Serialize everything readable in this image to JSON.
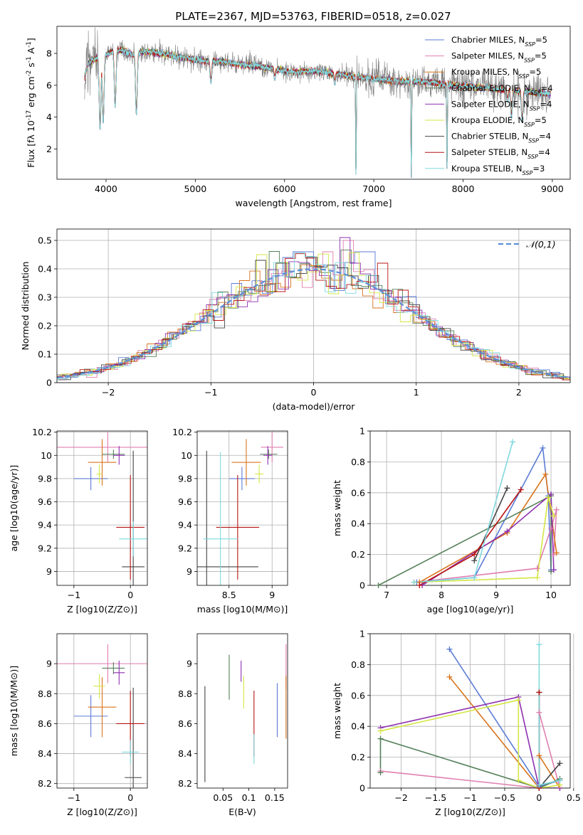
{
  "figure_title": "PLATE=2367, MJD=53763, FIBERID=0518, z=0.027",
  "models": [
    {
      "name": "Chabrier MILES, N_SSP=5",
      "imf": "Chabrier MILES",
      "nssp": "5",
      "color": "#5b7bd6"
    },
    {
      "name": "Salpeter MILES, N_SSP=5",
      "imf": "Salpeter MILES",
      "nssp": "5",
      "color": "#e07fb0"
    },
    {
      "name": "Kroupa MILES, N_SSP=5",
      "imf": "Kroupa MILES",
      "nssp": "5",
      "color": "#d9741c"
    },
    {
      "name": "Chabrier ELODIE, N_SSP=4",
      "imf": "Chabrier ELODIE",
      "nssp": "4",
      "color": "#55805a"
    },
    {
      "name": "Salpeter ELODIE, N_SSP=4",
      "imf": "Salpeter ELODIE",
      "nssp": "4",
      "color": "#8e2fb0"
    },
    {
      "name": "Kroupa ELODIE, N_SSP=5",
      "imf": "Kroupa ELODIE",
      "nssp": "5",
      "color": "#d4e645"
    },
    {
      "name": "Chabrier STELIB, N_SSP=4",
      "imf": "Chabrier STELIB",
      "nssp": "4",
      "color": "#444444"
    },
    {
      "name": "Salpeter STELIB, N_SSP=4",
      "imf": "Salpeter STELIB",
      "nssp": "4",
      "color": "#b81414"
    },
    {
      "name": "Kroupa STELIB, N_SSP=3",
      "imf": "Kroupa STELIB",
      "nssp": "3",
      "color": "#7fd9de"
    }
  ],
  "chart_data": [
    {
      "id": "spectrum",
      "type": "line",
      "xlabel": "wavelength [Angstrom, rest frame]",
      "ylabel": "Flux [f_λ 10^-17 erg cm^-2 s^-1 A^-1]",
      "xlim": [
        3450,
        9200
      ],
      "ylim": [
        0.1,
        9.7
      ],
      "xticks": [
        4000,
        5000,
        6000,
        7000,
        8000,
        9000
      ],
      "yticks": [
        2,
        4,
        6,
        8
      ],
      "legend": "top-right",
      "grid": false,
      "data_color": "#808080",
      "continuum": [
        [
          3760,
          6.6
        ],
        [
          3800,
          7.3
        ],
        [
          3850,
          7.6
        ],
        [
          3900,
          7.7
        ],
        [
          3950,
          7.6
        ],
        [
          4000,
          7.9
        ],
        [
          4100,
          8.2
        ],
        [
          4200,
          8.2
        ],
        [
          4300,
          7.9
        ],
        [
          4400,
          8.1
        ],
        [
          4500,
          8.1
        ],
        [
          4700,
          7.9
        ],
        [
          4900,
          7.7
        ],
        [
          5100,
          7.5
        ],
        [
          5300,
          7.5
        ],
        [
          5500,
          7.3
        ],
        [
          5700,
          7.2
        ],
        [
          5900,
          7.0
        ],
        [
          6100,
          6.8
        ],
        [
          6300,
          6.9
        ],
        [
          6500,
          6.8
        ],
        [
          6700,
          6.6
        ],
        [
          6900,
          6.45
        ],
        [
          7100,
          6.35
        ],
        [
          7300,
          6.25
        ],
        [
          7500,
          6.25
        ],
        [
          7700,
          6.15
        ],
        [
          7900,
          5.95
        ],
        [
          8100,
          5.9
        ],
        [
          8300,
          5.8
        ],
        [
          8500,
          5.7
        ],
        [
          8700,
          5.6
        ],
        [
          8900,
          5.5
        ],
        [
          8980,
          5.45
        ]
      ],
      "dips": [
        [
          3933,
          3.2
        ],
        [
          3968,
          3.6
        ],
        [
          4102,
          4.6
        ],
        [
          4340,
          4.1
        ],
        [
          5175,
          6.1
        ],
        [
          5890,
          6.3
        ],
        [
          6563,
          6.0
        ],
        [
          6800,
          0.2
        ],
        [
          7420,
          0.2
        ],
        [
          7820,
          0.6
        ],
        [
          8500,
          4.9
        ],
        [
          8542,
          3.9
        ],
        [
          8662,
          3.7
        ]
      ]
    },
    {
      "id": "residual_hist",
      "type": "step",
      "xlabel": "(data-model)/error",
      "ylabel": "Normed distribution",
      "xlim": [
        -2.5,
        2.5
      ],
      "ylim": [
        0,
        0.54
      ],
      "xticks": [
        -2,
        -1,
        0,
        1,
        2
      ],
      "yticks": [
        0.0,
        0.1,
        0.2,
        0.3,
        0.4,
        0.5
      ],
      "legend_label": "𝒩(0,1)",
      "legend": "top-right",
      "grid": true,
      "peaks": [
        {
          "x": -0.55,
          "y": 0.45,
          "series": 5
        },
        {
          "x": -0.55,
          "y": 0.43,
          "series": 6
        },
        {
          "x": 0.35,
          "y": 0.51,
          "series": 4
        },
        {
          "x": 0.35,
          "y": 0.5,
          "series": 1
        },
        {
          "x": 0.15,
          "y": 0.46,
          "series": 1
        },
        {
          "x": 0.5,
          "y": 0.46,
          "series": 0
        },
        {
          "x": -0.1,
          "y": 0.46,
          "series": 0
        },
        {
          "x": 0.65,
          "y": 0.42,
          "series": 7
        },
        {
          "x": 0.45,
          "y": 0.42,
          "series": 4
        }
      ]
    },
    {
      "id": "age_vs_Z",
      "type": "errorbar",
      "xlabel": "Z [log10(Z/Z⊙)]",
      "ylabel": "age [log10(age/yr)]",
      "xlim": [
        -1.3,
        0.3
      ],
      "ylim": [
        8.88,
        10.21
      ],
      "xticks": [
        -1,
        0
      ],
      "yticks": [
        9.0,
        9.2,
        9.4,
        9.6,
        9.8,
        10.0,
        10.2
      ],
      "grid": true,
      "points": [
        {
          "series": 0,
          "x": -0.7,
          "y": 9.8,
          "xerr": 0.3,
          "yerr": 0.1
        },
        {
          "series": 1,
          "x": -0.4,
          "y": 10.07,
          "xerr": 0.9,
          "yerr": 0.13
        },
        {
          "series": 2,
          "x": -0.5,
          "y": 9.94,
          "xerr": 0.25,
          "yerr": 0.2
        },
        {
          "series": 3,
          "x": -0.3,
          "y": 10.01,
          "xerr": 0.2,
          "yerr": 0.04
        },
        {
          "series": 4,
          "x": -0.2,
          "y": 10.0,
          "xerr": 0.1,
          "yerr": 0.08
        },
        {
          "series": 5,
          "x": -0.55,
          "y": 9.84,
          "xerr": 0.05,
          "yerr": 0.08
        },
        {
          "series": 6,
          "x": 0.05,
          "y": 9.04,
          "xerr": 0.2,
          "yerr": 1.0
        },
        {
          "series": 7,
          "x": 0.0,
          "y": 9.38,
          "xerr": 0.25,
          "yerr": 0.45
        },
        {
          "series": 8,
          "x": 0.05,
          "y": 9.28,
          "xerr": 0.25,
          "yerr": 0.15
        }
      ]
    },
    {
      "id": "age_vs_mass",
      "type": "errorbar",
      "xlabel": "mass [log10(M/M⊙)]",
      "ylabel": "",
      "xlim": [
        8.13,
        9.18
      ],
      "ylim": [
        8.88,
        10.21
      ],
      "xticks": [
        8.5,
        9.0
      ],
      "yticks": [
        9.0,
        9.2,
        9.4,
        9.6,
        9.8,
        10.0,
        10.2
      ],
      "grid": true,
      "points": [
        {
          "series": 0,
          "x": 8.65,
          "y": 9.8,
          "xerr": 0.15,
          "yerr": 0.1
        },
        {
          "series": 1,
          "x": 9.0,
          "y": 10.07,
          "xerr": 0.13,
          "yerr": 0.13
        },
        {
          "series": 2,
          "x": 8.7,
          "y": 9.94,
          "xerr": 0.17,
          "yerr": 0.2
        },
        {
          "series": 3,
          "x": 8.96,
          "y": 10.01,
          "xerr": 0.1,
          "yerr": 0.04
        },
        {
          "series": 4,
          "x": 8.95,
          "y": 10.0,
          "xerr": 0.05,
          "yerr": 0.08
        },
        {
          "series": 5,
          "x": 8.85,
          "y": 9.84,
          "xerr": 0.05,
          "yerr": 0.08
        },
        {
          "series": 6,
          "x": 8.24,
          "y": 9.04,
          "xerr": 0.6,
          "yerr": 1.0
        },
        {
          "series": 7,
          "x": 8.6,
          "y": 9.38,
          "xerr": 0.25,
          "yerr": 0.45
        },
        {
          "series": 8,
          "x": 8.4,
          "y": 9.28,
          "xerr": 0.2,
          "yerr": 0.75
        }
      ]
    },
    {
      "id": "weight_vs_age",
      "type": "line",
      "xlabel": "age [log10(age/yr)]",
      "ylabel": "mass weight",
      "xlim": [
        6.7,
        10.35
      ],
      "ylim": [
        0,
        1
      ],
      "xticks": [
        7,
        8,
        9,
        10
      ],
      "yticks": [
        0.0,
        0.2,
        0.4,
        0.6,
        0.8,
        1.0
      ],
      "grid": true,
      "series": [
        {
          "series": 0,
          "points": [
            [
              7.55,
              0.02
            ],
            [
              8.6,
              0.05
            ],
            [
              9.85,
              0.89
            ],
            [
              9.95,
              0.58
            ],
            [
              10.0,
              0.1
            ]
          ]
        },
        {
          "series": 1,
          "points": [
            [
              7.5,
              0.02
            ],
            [
              9.75,
              0.11
            ],
            [
              10.0,
              0.37
            ],
            [
              10.1,
              0.49
            ],
            [
              10.05,
              0.2
            ]
          ]
        },
        {
          "series": 2,
          "points": [
            [
              7.6,
              0.02
            ],
            [
              9.2,
              0.34
            ],
            [
              9.9,
              0.72
            ],
            [
              10.1,
              0.21
            ]
          ]
        },
        {
          "series": 3,
          "points": [
            [
              6.85,
              0.0
            ],
            [
              10.0,
              0.58
            ],
            [
              10.0,
              0.09
            ]
          ]
        },
        {
          "series": 4,
          "points": [
            [
              7.65,
              0.0
            ],
            [
              9.2,
              0.35
            ],
            [
              10.0,
              0.59
            ],
            [
              10.05,
              0.1
            ]
          ]
        },
        {
          "series": 5,
          "points": [
            [
              7.5,
              0.02
            ],
            [
              9.75,
              0.05
            ],
            [
              9.95,
              0.57
            ],
            [
              10.05,
              0.45
            ]
          ]
        },
        {
          "series": 6,
          "points": [
            [
              8.6,
              0.16
            ],
            [
              9.2,
              0.63
            ]
          ]
        },
        {
          "series": 7,
          "points": [
            [
              7.6,
              0.0
            ],
            [
              8.6,
              0.2
            ],
            [
              9.45,
              0.62
            ]
          ]
        },
        {
          "series": 8,
          "points": [
            [
              7.5,
              0.02
            ],
            [
              8.6,
              0.05
            ],
            [
              9.3,
              0.93
            ]
          ]
        }
      ]
    },
    {
      "id": "mass_vs_Z",
      "type": "errorbar",
      "xlabel": "Z [log10(Z/Z⊙)]",
      "ylabel": "mass [log10(M/M⊙)]",
      "xlim": [
        -1.3,
        0.3
      ],
      "ylim": [
        8.17,
        9.2
      ],
      "xticks": [
        -1,
        0
      ],
      "yticks": [
        8.2,
        8.4,
        8.6,
        8.8,
        9.0
      ],
      "grid": true,
      "points": [
        {
          "series": 0,
          "x": -0.7,
          "y": 8.65,
          "xerr": 0.3,
          "yerr": 0.14
        },
        {
          "series": 1,
          "x": -0.4,
          "y": 9.0,
          "xerr": 0.9,
          "yerr": 0.13
        },
        {
          "series": 2,
          "x": -0.5,
          "y": 8.71,
          "xerr": 0.25,
          "yerr": 0.2
        },
        {
          "series": 3,
          "x": -0.3,
          "y": 8.97,
          "xerr": 0.2,
          "yerr": 0.04
        },
        {
          "series": 4,
          "x": -0.2,
          "y": 8.94,
          "xerr": 0.1,
          "yerr": 0.08
        },
        {
          "series": 5,
          "x": -0.55,
          "y": 8.85,
          "xerr": 0.1,
          "yerr": 0.08
        },
        {
          "series": 6,
          "x": 0.05,
          "y": 8.24,
          "xerr": 0.15,
          "yerr": 0.6
        },
        {
          "series": 7,
          "x": 0.0,
          "y": 8.6,
          "xerr": 0.25,
          "yerr": 0.22
        },
        {
          "series": 8,
          "x": 0.0,
          "y": 8.41,
          "xerr": 0.15,
          "yerr": 0.08
        }
      ]
    },
    {
      "id": "mass_vs_EBV",
      "type": "errorbar",
      "xlabel": "E(B-V)",
      "ylabel": "",
      "xlim": [
        0.0,
        0.175
      ],
      "ylim": [
        8.17,
        9.2
      ],
      "xticks": [
        0.05,
        0.1,
        0.15
      ],
      "yticks": [
        8.2,
        8.4,
        8.6,
        8.8,
        9.0
      ],
      "grid": false,
      "points": [
        {
          "series": 0,
          "x": 0.155,
          "y": 8.69,
          "xerr": 0,
          "yerr": 0.18
        },
        {
          "series": 1,
          "x": 0.172,
          "y": 8.98,
          "xerr": 0,
          "yerr": 0.15
        },
        {
          "series": 2,
          "x": 0.172,
          "y": 8.71,
          "xerr": 0,
          "yerr": 0.21
        },
        {
          "series": 3,
          "x": 0.062,
          "y": 8.91,
          "xerr": 0,
          "yerr": 0.15
        },
        {
          "series": 4,
          "x": 0.085,
          "y": 8.95,
          "xerr": 0,
          "yerr": 0.07
        },
        {
          "series": 5,
          "x": 0.09,
          "y": 8.81,
          "xerr": 0,
          "yerr": 0.11
        },
        {
          "series": 6,
          "x": 0.015,
          "y": 8.53,
          "xerr": 0,
          "yerr": 0.32
        },
        {
          "series": 7,
          "x": 0.11,
          "y": 8.6,
          "xerr": 0,
          "yerr": 0.22
        },
        {
          "series": 8,
          "x": 0.11,
          "y": 8.43,
          "xerr": 0,
          "yerr": 0.1
        }
      ]
    },
    {
      "id": "weight_vs_Z",
      "type": "line",
      "xlabel": "Z [log10(Z/Z⊙)]",
      "ylabel": "mass weight",
      "xlim": [
        -2.45,
        0.45
      ],
      "ylim": [
        0,
        1
      ],
      "xticks": [
        -2.0,
        -1.5,
        -1.0,
        -0.5,
        0.0,
        0.5
      ],
      "yticks": [
        0.0,
        0.2,
        0.4,
        0.6,
        0.8,
        1.0
      ],
      "grid": true,
      "series": [
        {
          "series": 0,
          "points": [
            [
              -1.3,
              0.9
            ],
            [
              0.0,
              0.01
            ],
            [
              0.3,
              0.05
            ]
          ]
        },
        {
          "series": 1,
          "points": [
            [
              -2.3,
              0.11
            ],
            [
              0.0,
              0.0
            ],
            [
              0.0,
              0.49
            ],
            [
              0.3,
              0.0
            ]
          ]
        },
        {
          "series": 2,
          "points": [
            [
              -1.3,
              0.72
            ],
            [
              0.0,
              0.0
            ],
            [
              0.0,
              0.21
            ],
            [
              0.3,
              0.0
            ]
          ]
        },
        {
          "series": 3,
          "points": [
            [
              -2.3,
              0.1
            ],
            [
              -2.3,
              0.32
            ],
            [
              0.0,
              0.0
            ],
            [
              0.3,
              0.06
            ]
          ]
        },
        {
          "series": 4,
          "points": [
            [
              -2.3,
              0.39
            ],
            [
              -0.3,
              0.59
            ],
            [
              0.0,
              0.0
            ],
            [
              0.3,
              0.0
            ]
          ]
        },
        {
          "series": 5,
          "points": [
            [
              -2.3,
              0.37
            ],
            [
              -0.3,
              0.57
            ],
            [
              -0.3,
              0.05
            ],
            [
              0.0,
              0.0
            ],
            [
              0.3,
              0.02
            ]
          ]
        },
        {
          "series": 6,
          "points": [
            [
              0.0,
              0.62
            ],
            [
              0.0,
              0.0
            ],
            [
              0.3,
              0.16
            ]
          ]
        },
        {
          "series": 7,
          "points": [
            [
              0.0,
              0.62
            ],
            [
              0.0,
              0.0
            ]
          ]
        },
        {
          "series": 8,
          "points": [
            [
              0.0,
              0.93
            ],
            [
              0.0,
              0.02
            ],
            [
              0.3,
              0.05
            ]
          ]
        }
      ]
    }
  ]
}
